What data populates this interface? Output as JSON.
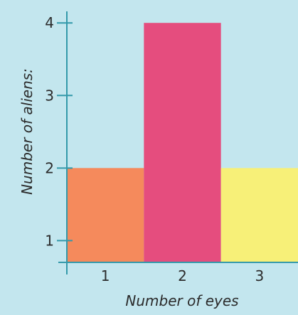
{
  "chart_data": {
    "type": "bar",
    "categories": [
      "1",
      "2",
      "3"
    ],
    "values": [
      2,
      4,
      2
    ],
    "xlabel": "Number of eyes",
    "ylabel": "Number of aliens:",
    "ylim": [
      0.7,
      4.1
    ],
    "yticks": [
      "1",
      "2",
      "3",
      "4"
    ],
    "bar_colors": [
      "#f58a5c",
      "#e54d7e",
      "#f7f078"
    ],
    "axis_color": "#3399aa",
    "background": "#c3e6ee",
    "grid": false,
    "legend": "none"
  }
}
